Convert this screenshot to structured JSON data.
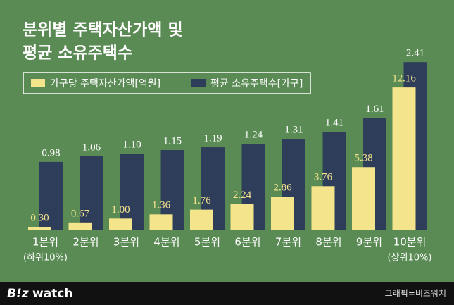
{
  "chart_data": {
    "type": "bar",
    "title": [
      "분위별 주택자산가액 및",
      "평균 소유주택수"
    ],
    "categories": [
      "1분위",
      "2분위",
      "3분위",
      "4분위",
      "5분위",
      "6분위",
      "7분위",
      "8분위",
      "9분위",
      "10분위"
    ],
    "category_notes": [
      "(하위10%)",
      null,
      null,
      null,
      null,
      null,
      null,
      null,
      null,
      "(상위10%)"
    ],
    "series": [
      {
        "name": "가구당 주택자산가액[억원]",
        "color": "#f4e48c",
        "axis": "y2",
        "values": [
          0.3,
          0.67,
          1.0,
          1.36,
          1.76,
          2.24,
          2.86,
          3.76,
          5.38,
          12.16
        ],
        "value_labels": [
          "0.30",
          "0.67",
          "1.00",
          "1.36",
          "1.76",
          "2.24",
          "2.86",
          "3.76",
          "5.38",
          "12.16"
        ]
      },
      {
        "name": "평균 소유주택수[가구]",
        "color": "#2e3d5a",
        "values": [
          0.98,
          1.06,
          1.1,
          1.15,
          1.19,
          1.24,
          1.31,
          1.41,
          1.61,
          2.41
        ],
        "value_labels": [
          "0.98",
          "1.06",
          "1.10",
          "1.15",
          "1.19",
          "1.24",
          "1.31",
          "1.41",
          "1.61",
          "2.41"
        ]
      }
    ],
    "ylim": [
      0,
      3.3
    ],
    "y2lim": [
      0,
      19.6
    ],
    "brand": [
      "B!z",
      "watch"
    ],
    "credit": "그래픽=비즈워치"
  }
}
